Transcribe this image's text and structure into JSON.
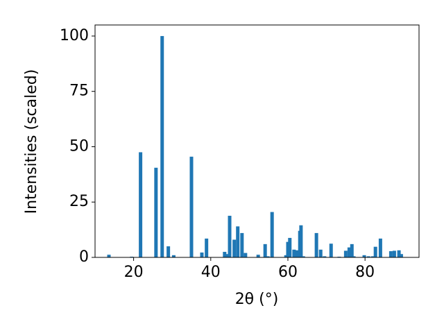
{
  "chart_data": {
    "type": "bar",
    "xlabel": "2θ (°)",
    "ylabel": "Intensities (scaled)",
    "color": "#1f77b4",
    "x": [
      13.6,
      19.5,
      21.8,
      25.8,
      27.4,
      29.0,
      30.4,
      35.0,
      37.7,
      38.9,
      43.6,
      44.1,
      44.9,
      46.1,
      47.0,
      48.1,
      49.0,
      52.3,
      54.1,
      54.8,
      55.9,
      59.5,
      60.0,
      60.5,
      61.6,
      62.3,
      63.1,
      63.4,
      64.0,
      67.4,
      68.5,
      69.5,
      71.2,
      73.3,
      75.0,
      75.9,
      76.6,
      77.1,
      79.8,
      80.9,
      82.0,
      82.7,
      84.0,
      86.7,
      87.6,
      88.8,
      89.4
    ],
    "values": [
      1.2,
      0.3,
      47.5,
      40.5,
      100,
      5,
      1,
      45.5,
      2.2,
      8.5,
      2.5,
      1.5,
      18.8,
      8,
      14,
      11,
      2,
      1.2,
      6,
      0.5,
      20.5,
      1,
      7,
      8.8,
      3.5,
      3.2,
      12,
      14.5,
      0.5,
      11,
      3.5,
      0.5,
      6.2,
      0.3,
      3,
      4.5,
      6,
      0.5,
      1,
      0.5,
      0.5,
      4.8,
      8.5,
      2.8,
      3,
      3.2,
      1.5
    ],
    "xlim": [
      10,
      94
    ],
    "ylim": [
      0,
      105
    ],
    "xticks": [
      20,
      40,
      60,
      80
    ],
    "yticks": [
      0,
      25,
      50,
      75,
      100
    ]
  }
}
